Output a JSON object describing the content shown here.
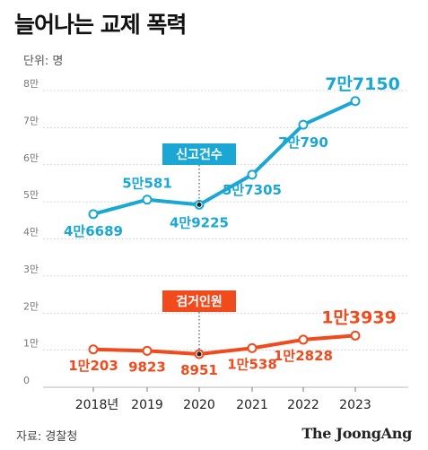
{
  "title": "늘어나는 교제 폭력",
  "unit_label": "단위: 명",
  "source": "자료: 경찰청",
  "brand": "The JoongAng",
  "colors": {
    "reports": "#1aa7d4",
    "arrests": "#f04a1d",
    "grid": "#bbbbbb"
  },
  "chart_data": {
    "type": "line",
    "title": "늘어나는 교제 폭력",
    "unit": "명",
    "x": [
      "2018년",
      "2019",
      "2020",
      "2021",
      "2022",
      "2023"
    ],
    "yticks": [
      "0",
      "1만",
      "2만",
      "3만",
      "4만",
      "5만",
      "6만",
      "7만",
      "8만"
    ],
    "ylim": [
      0,
      80000
    ],
    "grid": true,
    "series": [
      {
        "name": "신고건수",
        "color": "#1aa7d4",
        "values": [
          46689,
          50581,
          49225,
          57305,
          70790,
          77150
        ],
        "labels": [
          "4만6689",
          "5만581",
          "4만9225",
          "5만7305",
          "7만790",
          "7만7150"
        ]
      },
      {
        "name": "검거인원",
        "color": "#f04a1d",
        "values": [
          10203,
          9823,
          8951,
          10538,
          12828,
          13939
        ],
        "labels": [
          "1만203",
          "9823",
          "8951",
          "1만538",
          "1만2828",
          "1만3939"
        ]
      }
    ]
  }
}
